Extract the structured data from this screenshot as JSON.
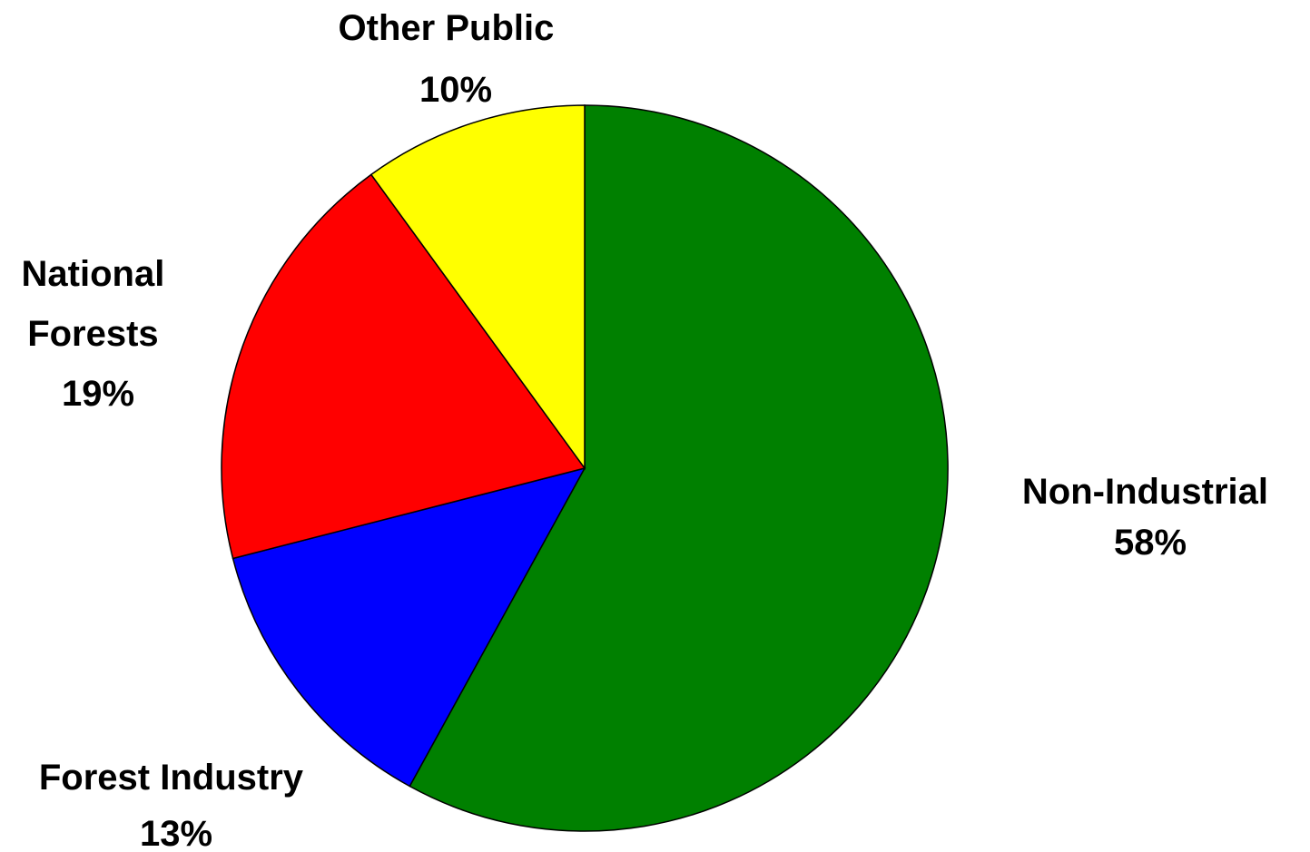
{
  "chart_data": {
    "type": "pie",
    "start_angle_deg": 0,
    "direction": "clockwise",
    "slices": [
      {
        "label_lines": [
          "Non-Industrial"
        ],
        "percent_label": "58%",
        "value": 58,
        "color": "#008000"
      },
      {
        "label_lines": [
          "Forest Industry"
        ],
        "percent_label": "13%",
        "value": 13,
        "color": "#0000FF"
      },
      {
        "label_lines": [
          "National",
          "Forests"
        ],
        "percent_label": "19%",
        "value": 19,
        "color": "#FF0000"
      },
      {
        "label_lines": [
          "Other Public"
        ],
        "percent_label": "10%",
        "value": 10,
        "color": "#FFFF00"
      }
    ]
  }
}
